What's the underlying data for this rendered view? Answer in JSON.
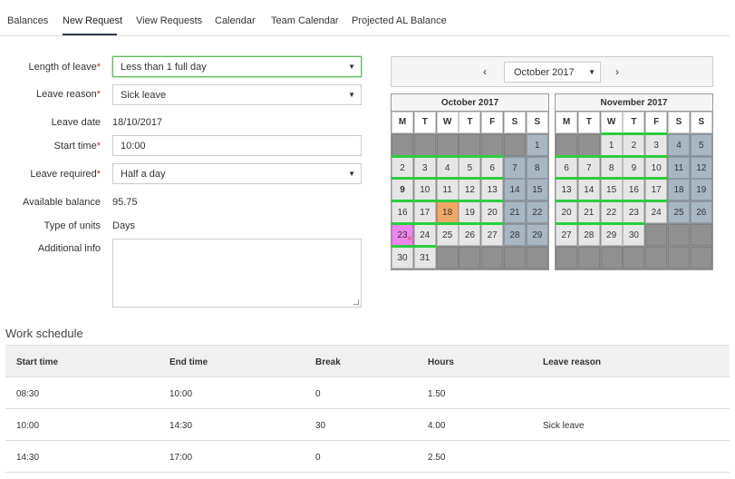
{
  "tabs": [
    {
      "label": "Balances",
      "active": false
    },
    {
      "label": "New Request",
      "active": true
    },
    {
      "label": "View Requests",
      "active": false
    },
    {
      "label": "Calendar",
      "active": false
    },
    {
      "label": "Team Calendar",
      "active": false
    },
    {
      "label": "Projected AL Balance",
      "active": false
    }
  ],
  "form": {
    "length_of_leave": {
      "label": "Length of leave",
      "value": "Less than 1 full day"
    },
    "leave_reason": {
      "label": "Leave reason",
      "value": "Sick leave"
    },
    "leave_date": {
      "label": "Leave date",
      "value": "18/10/2017"
    },
    "start_time": {
      "label": "Start time",
      "value": "10:00"
    },
    "leave_required": {
      "label": "Leave required",
      "value": "Half a day"
    },
    "available_balance": {
      "label": "Available balance",
      "value": "95.75"
    },
    "type_of_units": {
      "label": "Type of units",
      "value": "Days"
    },
    "additional_info": {
      "label": "Additional info",
      "value": ""
    },
    "required_marker": "*"
  },
  "calendar": {
    "prev_icon": "chevron-left-icon",
    "next_icon": "chevron-right-icon",
    "prev_glyph": "‹",
    "next_glyph": "›",
    "selected_month": "October 2017",
    "weekday_headers": [
      "M",
      "T",
      "W",
      "T",
      "F",
      "S",
      "S"
    ],
    "months": [
      {
        "title": "October 2017",
        "weeks": [
          [
            "",
            "",
            "",
            "",
            "",
            "",
            "1"
          ],
          [
            "2",
            "3",
            "4",
            "5",
            "6",
            "7",
            "8"
          ],
          [
            "9",
            "10",
            "11",
            "12",
            "13",
            "14",
            "15"
          ],
          [
            "16",
            "17",
            "18",
            "19",
            "20",
            "21",
            "22"
          ],
          [
            "23",
            "24",
            "25",
            "26",
            "27",
            "28",
            "29"
          ],
          [
            "30",
            "31",
            "",
            "",
            "",
            "",
            ""
          ]
        ],
        "highlighted_day": "18",
        "pink_day": "23",
        "bold_day": "9"
      },
      {
        "title": "November 2017",
        "weeks": [
          [
            "",
            "",
            "1",
            "2",
            "3",
            "4",
            "5"
          ],
          [
            "6",
            "7",
            "8",
            "9",
            "10",
            "11",
            "12"
          ],
          [
            "13",
            "14",
            "15",
            "16",
            "17",
            "18",
            "19"
          ],
          [
            "20",
            "21",
            "22",
            "23",
            "24",
            "25",
            "26"
          ],
          [
            "27",
            "28",
            "29",
            "30",
            "",
            "",
            ""
          ],
          [
            "",
            "",
            "",
            "",
            "",
            "",
            ""
          ]
        ]
      }
    ],
    "colors": {
      "weekday": "#e6e6e6",
      "weekend": "#a9b7c3",
      "empty": "#909090",
      "selected": "#f2a766",
      "pink": "#ee88ee",
      "green_bar": "#2ecc40"
    }
  },
  "work_schedule": {
    "title": "Work schedule",
    "columns": [
      "Start time",
      "End time",
      "Break",
      "Hours",
      "Leave reason"
    ],
    "rows": [
      [
        "08:30",
        "10:00",
        "0",
        "1.50",
        ""
      ],
      [
        "10:00",
        "14:30",
        "30",
        "4.00",
        "Sick leave"
      ],
      [
        "14:30",
        "17:00",
        "0",
        "2.50",
        ""
      ]
    ]
  }
}
